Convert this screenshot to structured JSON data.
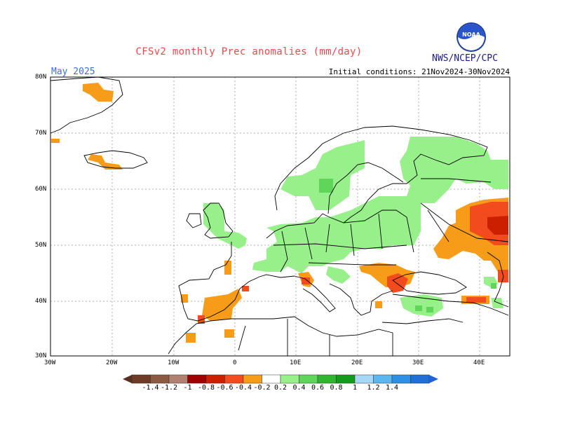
{
  "header": {
    "title": "CFSv2 monthly Prec anomalies (mm/day)",
    "agency": "NWS/NCEP/CPC",
    "logo_text": "NOAA",
    "month": "May 2025",
    "initial_conditions": "Initial conditions: 21Nov2024-30Nov2024"
  },
  "axes": {
    "lat_labels": [
      "80N",
      "70N",
      "60N",
      "50N",
      "40N",
      "30N"
    ],
    "lon_labels": [
      "30W",
      "20W",
      "10W",
      "0",
      "10E",
      "20E",
      "30E",
      "40E"
    ]
  },
  "colorbar": {
    "labels": [
      "-1.4",
      "-1.2",
      "-1",
      "-0.8",
      "-0.6",
      "-0.4",
      "-0.2",
      "0.2",
      "0.4",
      "0.6",
      "0.8",
      "1",
      "1.2",
      "1.4"
    ],
    "colors": [
      "#6e3b27",
      "#8b5a43",
      "#b08070",
      "#a00000",
      "#cc1f00",
      "#f24c1e",
      "#f79c18",
      "#ffffff",
      "#98f08a",
      "#5fd55a",
      "#2fb52f",
      "#139c1b",
      "#a6d8f5",
      "#5cb7f0",
      "#2d8fe6",
      "#1f6fd6"
    ],
    "lower_cap_color": "#5a2e1e",
    "upper_cap_color": "#1f63d6"
  },
  "colors": {
    "dry_weak": "#f79c18",
    "dry_moderate": "#f24c1e",
    "dry_strong": "#cc1f00",
    "wet_weak": "#98f08a",
    "wet_moderate": "#5fd55a",
    "grid": "#999999",
    "coast": "#000000"
  }
}
